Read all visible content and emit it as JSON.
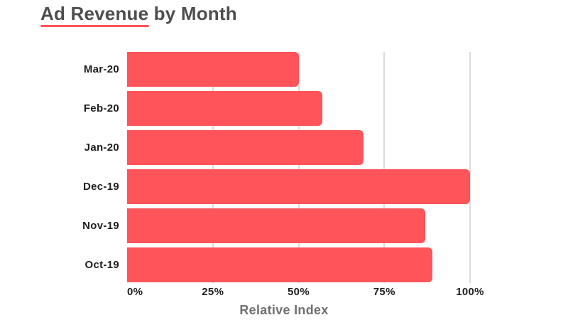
{
  "header": {
    "title": "Ad Revenue by Month"
  },
  "chart_data": {
    "type": "bar",
    "orientation": "horizontal",
    "title": "Ad Revenue by Month",
    "xlabel": "Relative Index",
    "ylabel": "",
    "categories": [
      "Mar-20",
      "Feb-20",
      "Jan-20",
      "Dec-19",
      "Nov-19",
      "Oct-19"
    ],
    "values": [
      50,
      57,
      69,
      100,
      87,
      89
    ],
    "value_unit": "%",
    "xlim": [
      0,
      100
    ],
    "xticks": [
      {
        "label": "0%",
        "value": 0
      },
      {
        "label": "25%",
        "value": 25
      },
      {
        "label": "50%",
        "value": 50
      },
      {
        "label": "75%",
        "value": 75
      },
      {
        "label": "100%",
        "value": 100
      }
    ],
    "grid": {
      "vertical_gridlines": true,
      "horizontal_gridlines": false,
      "zero_axis_line": false
    },
    "legend": {
      "visible": false
    },
    "colors": {
      "bar": "#ff545a",
      "title_underline": "#ff545a",
      "title_text": "#4e4e4e",
      "tick_text": "#1e1e1e",
      "axis_title_text": "#6f6f6f",
      "gridline": "#dcdcdc",
      "background": "#ffffff"
    }
  }
}
